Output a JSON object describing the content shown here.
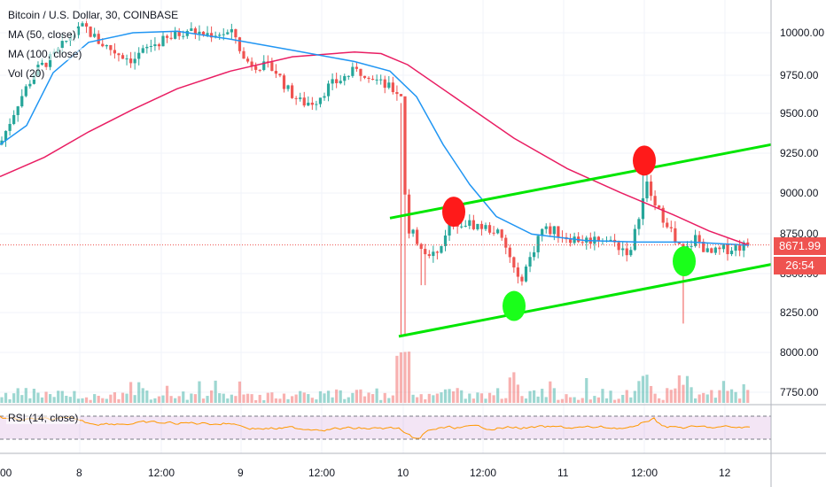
{
  "header": {
    "symbol_title": "Bitcoin / U.S. Dollar, 30, COINBASE"
  },
  "legend": {
    "ma50": "MA (50, close)",
    "ma100": "MA (100, close)",
    "vol": "Vol (20)",
    "rsi": "RSI (14, close)"
  },
  "price_axis": {
    "ticks": [
      "10000.00",
      "9750.00",
      "9500.00",
      "9250.00",
      "9000.00",
      "8750.00",
      "8500.00",
      "8250.00",
      "8000.00",
      "7750.00"
    ],
    "current_price": "8671.99",
    "countdown": "26:54"
  },
  "time_axis": {
    "labels": [
      "00",
      "8",
      "12:00",
      "9",
      "12:00",
      "10",
      "12:00",
      "11",
      "12:00",
      "12"
    ]
  },
  "colors": {
    "up": "#26a69a",
    "down": "#ef5350",
    "ma50": "#2196f3",
    "ma100": "#e91e63",
    "channel": "#00e600",
    "marker_high": "#ff1a1a",
    "marker_low": "#1aff1a",
    "rsi": "#ff9800",
    "rsi_band": "#9c27b0"
  },
  "chart_data": {
    "type": "candlestick",
    "title": "Bitcoin / U.S. Dollar, 30, COINBASE",
    "ylim": [
      7720,
      10150
    ],
    "ma50": [
      [
        0,
        9300
      ],
      [
        30,
        9420
      ],
      [
        60,
        9750
      ],
      [
        100,
        9940
      ],
      [
        150,
        10000
      ],
      [
        200,
        10010
      ],
      [
        260,
        9960
      ],
      [
        330,
        9890
      ],
      [
        400,
        9820
      ],
      [
        440,
        9760
      ],
      [
        470,
        9600
      ],
      [
        500,
        9300
      ],
      [
        530,
        9050
      ],
      [
        560,
        8850
      ],
      [
        600,
        8740
      ],
      [
        660,
        8700
      ],
      [
        720,
        8690
      ],
      [
        780,
        8690
      ],
      [
        845,
        8670
      ]
    ],
    "ma100": [
      [
        0,
        9100
      ],
      [
        50,
        9220
      ],
      [
        100,
        9380
      ],
      [
        150,
        9520
      ],
      [
        200,
        9650
      ],
      [
        260,
        9760
      ],
      [
        330,
        9850
      ],
      [
        400,
        9880
      ],
      [
        430,
        9870
      ],
      [
        460,
        9800
      ],
      [
        520,
        9570
      ],
      [
        580,
        9340
      ],
      [
        640,
        9150
      ],
      [
        700,
        9000
      ],
      [
        760,
        8860
      ],
      [
        800,
        8760
      ],
      [
        845,
        8670
      ]
    ],
    "channel_upper": [
      [
        440,
        8840
      ],
      [
        870,
        9300
      ]
    ],
    "channel_lower": [
      [
        450,
        8100
      ],
      [
        870,
        8550
      ]
    ],
    "markers_high": [
      [
        512,
        8880
      ],
      [
        727,
        9200
      ]
    ],
    "markers_low": [
      [
        580,
        8290
      ],
      [
        772,
        8570
      ]
    ],
    "last_price": 8671.99
  }
}
